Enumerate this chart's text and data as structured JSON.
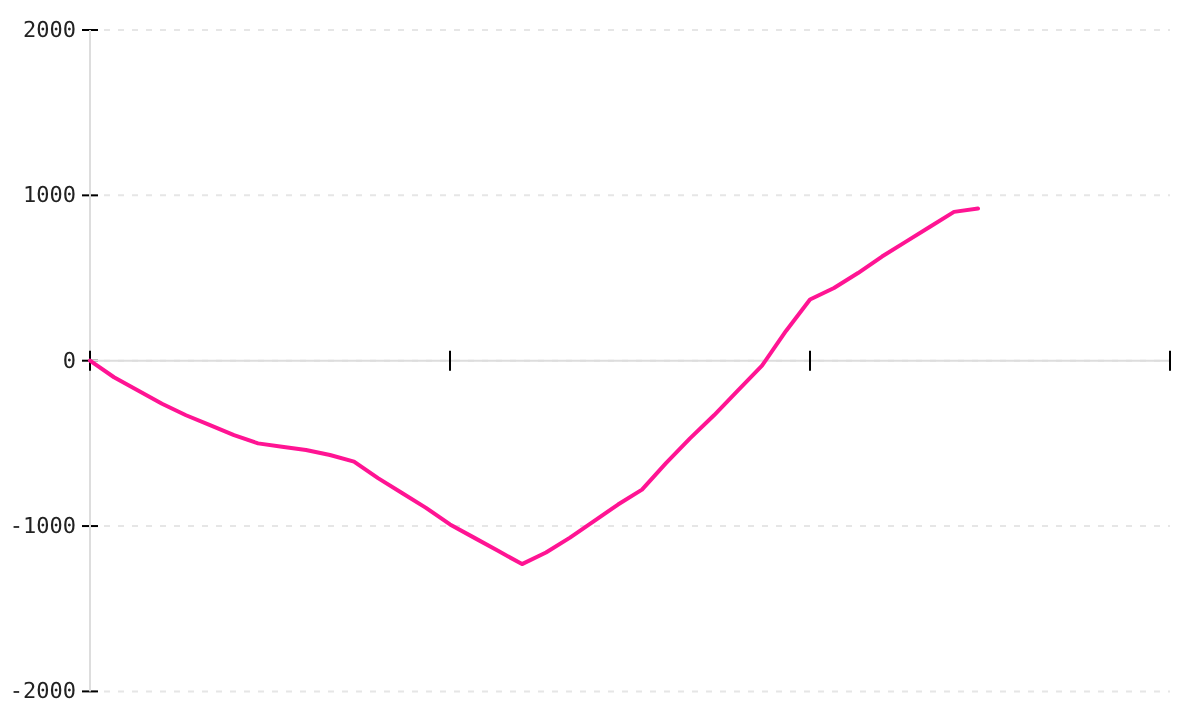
{
  "chart_data": {
    "type": "line",
    "categories": [
      null,
      null,
      null,
      null,
      null,
      null,
      null,
      null,
      null,
      null,
      null,
      null,
      null,
      null,
      null,
      null,
      null,
      null,
      null,
      null,
      null,
      null,
      null,
      null,
      null,
      null,
      null,
      null,
      null,
      null,
      null,
      null,
      null,
      null,
      null,
      null,
      null,
      null,
      null,
      null,
      null,
      null,
      null,
      null,
      null,
      null
    ],
    "series": [
      {
        "color": "#ff1493",
        "values": [
          0,
          -100,
          -180,
          -260,
          -330,
          -390,
          -450,
          -500,
          -520,
          -540,
          -570,
          -610,
          -710,
          -800,
          -890,
          -990,
          -1070,
          -1150,
          -1230,
          -1160,
          -1070,
          -970,
          -870,
          -780,
          -620,
          -470,
          -330,
          -180,
          -30,
          180,
          370,
          440,
          530,
          630,
          720,
          810,
          900,
          920,
          null,
          null,
          null,
          null,
          null,
          null,
          null,
          null
        ]
      }
    ],
    "ylim": [
      -2000,
      2000
    ],
    "yticks": [
      -2000,
      -1000,
      0,
      1000,
      2000
    ],
    "grid": "y",
    "tick_labels": "y",
    "marker": "none",
    "line_style": "solid"
  }
}
